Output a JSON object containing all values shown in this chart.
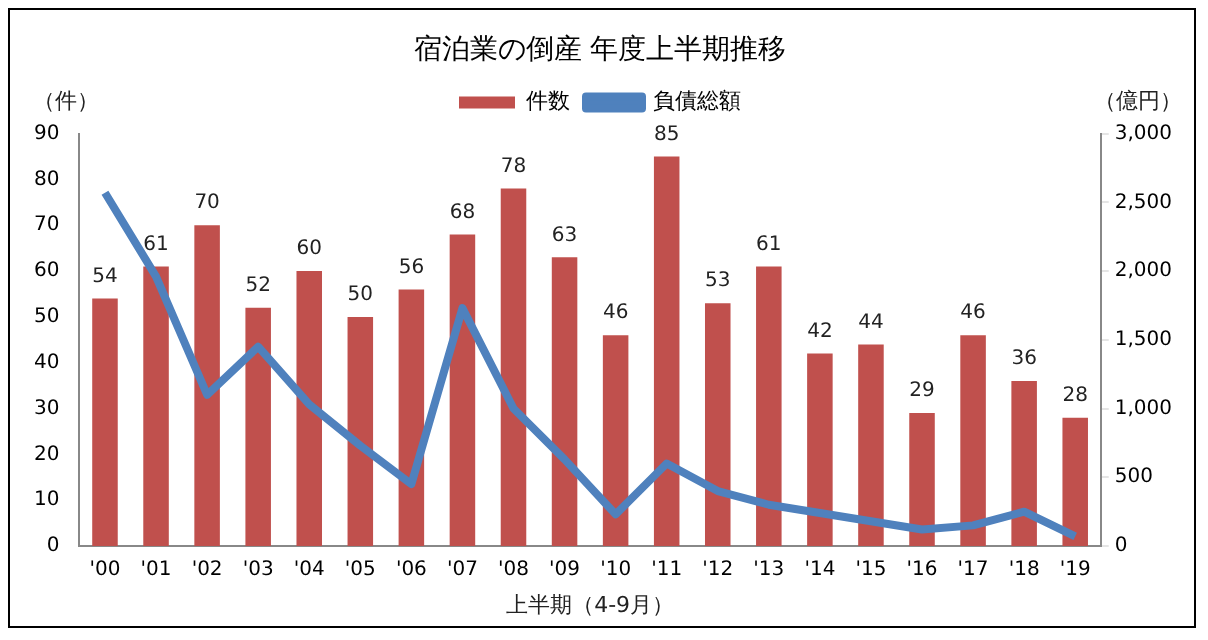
{
  "chart_data": {
    "type": "bar",
    "title": "宿泊業の倒産 年度上半期推移",
    "xlabel": "上半期（4-9月）",
    "ylabel": "（件）",
    "y2label": "（億円）",
    "categories": [
      "'00",
      "'01",
      "'02",
      "'03",
      "'04",
      "'05",
      "'06",
      "'07",
      "'08",
      "'09",
      "'10",
      "'11",
      "'12",
      "'13",
      "'14",
      "'15",
      "'16",
      "'17",
      "'18",
      "'19"
    ],
    "series": [
      {
        "name": "件数",
        "color": "#c0504d",
        "values": [
          54,
          61,
          70,
          52,
          60,
          50,
          56,
          68,
          78,
          63,
          46,
          85,
          53,
          61,
          42,
          44,
          29,
          46,
          36,
          28
        ],
        "data_labels": true
      },
      {
        "name": "負債総額",
        "type": "line",
        "axis": "y2",
        "color": "#4f81bd",
        "marker": "none",
        "values": [
          2570,
          1960,
          1100,
          1450,
          1030,
          730,
          450,
          1730,
          1000,
          630,
          230,
          600,
          400,
          300,
          240,
          180,
          120,
          150,
          250,
          70
        ]
      }
    ],
    "ylim": [
      0,
      90
    ],
    "yticks": [
      0,
      10,
      20,
      30,
      40,
      50,
      60,
      70,
      80,
      90
    ],
    "y2lim": [
      0,
      3000
    ],
    "y2ticks": [
      0,
      {
        "value": 500,
        "label": "500"
      },
      {
        "value": 1000,
        "label": "1,000"
      },
      {
        "value": 1500,
        "label": "1,500"
      },
      {
        "value": 2000,
        "label": "2,000"
      },
      {
        "value": 2500,
        "label": "2,500"
      },
      {
        "value": 3000,
        "label": "3,000"
      }
    ],
    "grid": false,
    "legend": "top"
  }
}
